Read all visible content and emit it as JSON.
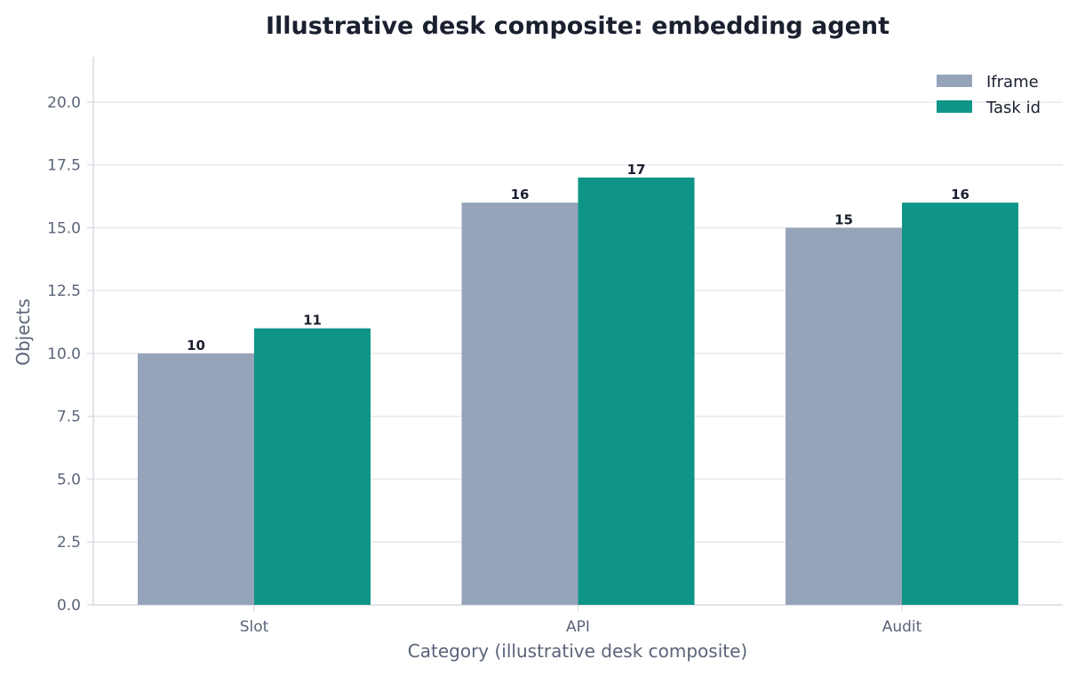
{
  "chart_data": {
    "type": "bar",
    "title": "Illustrative desk composite: embedding agent",
    "xlabel": "Category (illustrative desk composite)",
    "ylabel": "Objects",
    "categories": [
      "Slot",
      "API",
      "Audit"
    ],
    "series": [
      {
        "name": "Iframe",
        "values": [
          10,
          16,
          15
        ],
        "color": "#96a4b9"
      },
      {
        "name": "Task id",
        "values": [
          11,
          17,
          16
        ],
        "color": "#0e9588"
      }
    ],
    "ylim": [
      0,
      21.8
    ],
    "yticks": [
      "0.0",
      "2.5",
      "5.0",
      "7.5",
      "10.0",
      "12.5",
      "15.0",
      "17.5",
      "20.0"
    ],
    "ytick_values": [
      0,
      2.5,
      5,
      7.5,
      10,
      12.5,
      15,
      17.5,
      20
    ],
    "grid": true,
    "legend_position": "top-right",
    "colors": {
      "grid": "#e6e8ec",
      "axis": "#d5d9e0",
      "text": "#1b2030",
      "muted_text": "#5a6478"
    }
  }
}
